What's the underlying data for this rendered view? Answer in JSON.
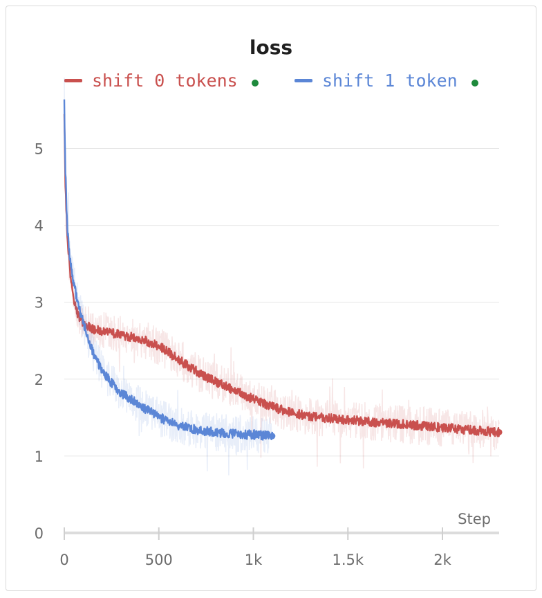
{
  "chart_data": {
    "type": "line",
    "title": "loss",
    "xlabel": "Step",
    "ylabel": "",
    "xlim": [
      0,
      2300
    ],
    "ylim": [
      0,
      5.6
    ],
    "x_ticks": [
      0,
      500,
      1000,
      1500,
      2000
    ],
    "x_tick_labels": [
      "0",
      "500",
      "1k",
      "1.5k",
      "2k"
    ],
    "y_ticks": [
      0,
      1,
      2,
      3,
      4,
      5
    ],
    "y_tick_labels": [
      "0",
      "1",
      "2",
      "3",
      "4",
      "5"
    ],
    "grid": true,
    "legend_position": "top",
    "series": [
      {
        "name": "shift 0 tokens",
        "color": "#c9504e",
        "status_color": "#1e8a3c",
        "x": [
          0,
          5,
          15,
          30,
          50,
          70,
          100,
          150,
          200,
          250,
          300,
          350,
          400,
          450,
          500,
          550,
          600,
          650,
          700,
          750,
          800,
          850,
          900,
          950,
          1000,
          1050,
          1100,
          1150,
          1200,
          1250,
          1300,
          1350,
          1400,
          1450,
          1500,
          1550,
          1600,
          1650,
          1700,
          1750,
          1800,
          1850,
          1900,
          1950,
          2000,
          2050,
          2100,
          2150,
          2200,
          2250,
          2300
        ],
        "y": [
          5.5,
          4.6,
          3.9,
          3.4,
          3.05,
          2.85,
          2.72,
          2.65,
          2.63,
          2.6,
          2.58,
          2.55,
          2.52,
          2.48,
          2.43,
          2.35,
          2.26,
          2.18,
          2.1,
          2.03,
          1.97,
          1.91,
          1.86,
          1.8,
          1.74,
          1.69,
          1.64,
          1.6,
          1.57,
          1.54,
          1.52,
          1.5,
          1.49,
          1.48,
          1.47,
          1.46,
          1.45,
          1.44,
          1.43,
          1.42,
          1.41,
          1.4,
          1.39,
          1.38,
          1.37,
          1.36,
          1.35,
          1.34,
          1.33,
          1.32,
          1.31
        ]
      },
      {
        "name": "shift 1 token",
        "color": "#5b86d6",
        "status_color": "#1e8a3c",
        "x": [
          0,
          5,
          15,
          30,
          50,
          70,
          100,
          130,
          160,
          200,
          250,
          300,
          350,
          400,
          450,
          500,
          550,
          600,
          650,
          700,
          750,
          800,
          850,
          900,
          950,
          1000,
          1050,
          1100
        ],
        "y": [
          5.6,
          4.8,
          4.0,
          3.55,
          3.25,
          3.0,
          2.75,
          2.5,
          2.3,
          2.12,
          1.95,
          1.82,
          1.74,
          1.66,
          1.58,
          1.51,
          1.45,
          1.4,
          1.37,
          1.34,
          1.32,
          1.31,
          1.3,
          1.29,
          1.28,
          1.28,
          1.27,
          1.26
        ]
      }
    ]
  }
}
